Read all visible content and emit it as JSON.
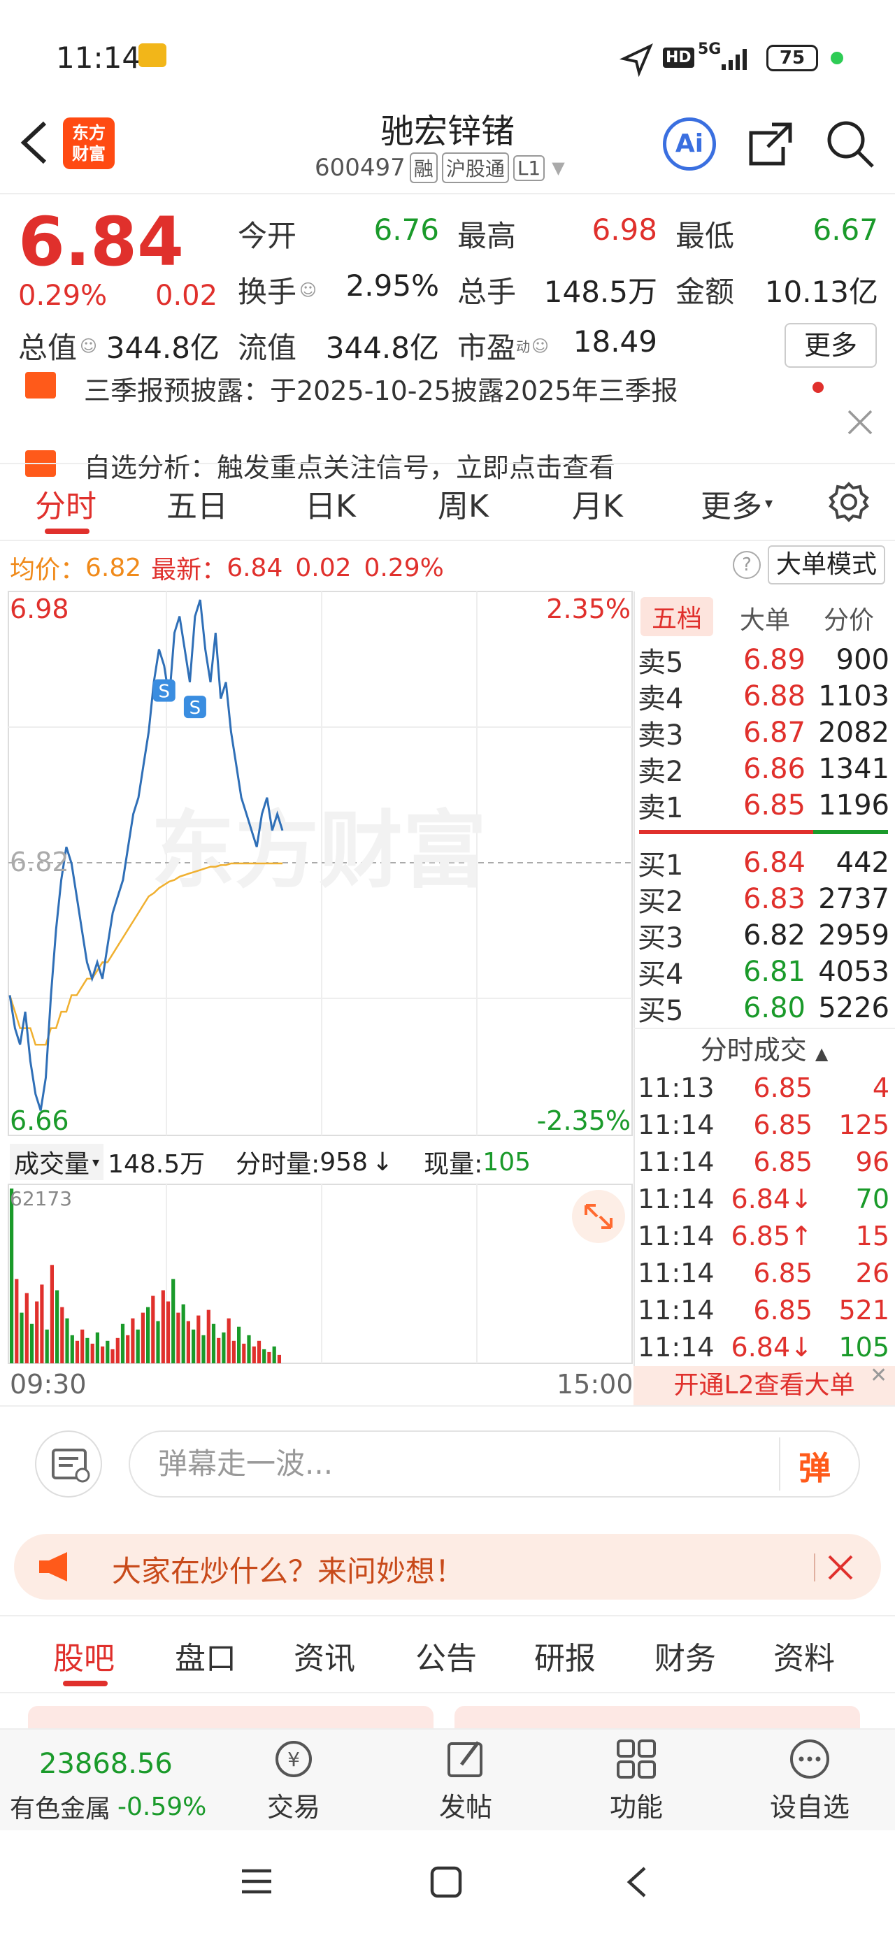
{
  "status": {
    "time": "11:14",
    "battery": "75",
    "network": "5G",
    "hd": "HD"
  },
  "header": {
    "logo_line1": "东方",
    "logo_line2": "财富",
    "title": "驰宏锌锗",
    "code": "600497",
    "tags": [
      "融",
      "沪股通",
      "L1"
    ],
    "ai_label": "Ai"
  },
  "quote": {
    "price": "6.84",
    "change_pct": "0.29%",
    "change": "0.02",
    "open_label": "今开",
    "open": "6.76",
    "high_label": "最高",
    "high": "6.98",
    "low_label": "最低",
    "low": "6.67",
    "turnover_label": "换手",
    "turnover": "2.95%",
    "volume_label": "总手",
    "volume": "148.5万",
    "amount_label": "金额",
    "amount": "10.13亿",
    "mktcap_label": "总值",
    "mktcap": "344.8亿",
    "float_label": "流值",
    "float": "344.8亿",
    "pe_label": "市盈",
    "pe_sup": "动",
    "pe": "18.49",
    "more_label": "更多"
  },
  "news": {
    "line1": "三季报预披露：于2025-10-25披露2025年三季报",
    "line2": "自选分析：触发重点关注信号，立即点击查看"
  },
  "tabs": [
    "分时",
    "五日",
    "日K",
    "周K",
    "月K",
    "更多"
  ],
  "info": {
    "avg_label": "均价：",
    "avg": "6.82",
    "latest_label": "最新：",
    "latest": "6.84",
    "chg": "0.02",
    "pct": "0.29%",
    "mode_label": "大单模式"
  },
  "chart_data": {
    "type": "line",
    "y_high": "6.98",
    "y_low": "6.66",
    "y_mid": "6.82",
    "pct_high": "2.35%",
    "pct_low": "-2.35%",
    "ylim": [
      6.66,
      6.98
    ],
    "x_start": "09:30",
    "x_end": "15:00",
    "watermark": "东方财富",
    "sell_marker": "S",
    "price_series": [
      6.74,
      6.72,
      6.71,
      6.73,
      6.7,
      6.68,
      6.67,
      6.69,
      6.74,
      6.78,
      6.81,
      6.83,
      6.82,
      6.8,
      6.78,
      6.76,
      6.75,
      6.76,
      6.75,
      6.77,
      6.79,
      6.8,
      6.81,
      6.83,
      6.85,
      6.86,
      6.88,
      6.9,
      6.93,
      6.95,
      6.94,
      6.92,
      6.96,
      6.97,
      6.95,
      6.93,
      6.97,
      6.98,
      6.95,
      6.93,
      6.96,
      6.92,
      6.93,
      6.9,
      6.88,
      6.86,
      6.85,
      6.84,
      6.83,
      6.85,
      6.86,
      6.84,
      6.85,
      6.84
    ],
    "avg_series": [
      6.74,
      6.73,
      6.72,
      6.72,
      6.72,
      6.71,
      6.71,
      6.71,
      6.72,
      6.72,
      6.73,
      6.73,
      6.74,
      6.74,
      6.745,
      6.75,
      6.75,
      6.755,
      6.76,
      6.76,
      6.765,
      6.77,
      6.775,
      6.78,
      6.785,
      6.79,
      6.795,
      6.8,
      6.802,
      6.805,
      6.807,
      6.809,
      6.81,
      6.812,
      6.813,
      6.814,
      6.815,
      6.816,
      6.817,
      6.818,
      6.818,
      6.819,
      6.819,
      6.82,
      6.82,
      6.82,
      6.82,
      6.82,
      6.82,
      6.82,
      6.82,
      6.82,
      6.82,
      6.82
    ],
    "volume_header": {
      "label": "成交量",
      "total": "148.5万",
      "period_label": "分时量:",
      "period": "958",
      "cur_label": "现量:",
      "cur": "105"
    },
    "volume_max": "62173",
    "volumes": [
      62173,
      30000,
      18000,
      25000,
      14000,
      22000,
      28000,
      12000,
      35000,
      26000,
      20000,
      16000,
      10000,
      8000,
      12000,
      9000,
      7000,
      11000,
      6000,
      8000,
      5000,
      9000,
      14000,
      10000,
      16000,
      12000,
      18000,
      20000,
      24000,
      15000,
      26000,
      22000,
      30000,
      18000,
      21000,
      15000,
      12000,
      17000,
      10000,
      19000,
      14000,
      9000,
      11000,
      16000,
      8000,
      13000,
      7000,
      10000,
      6000,
      8000,
      5000,
      4000,
      6000,
      3000
    ],
    "volume_colors": [
      "g",
      "r",
      "g",
      "r",
      "g",
      "r",
      "r",
      "g",
      "r",
      "g",
      "r",
      "g",
      "g",
      "r",
      "r",
      "g",
      "r",
      "g",
      "r",
      "g",
      "r",
      "r",
      "g",
      "r",
      "r",
      "g",
      "r",
      "g",
      "r",
      "g",
      "r",
      "r",
      "g",
      "r",
      "g",
      "r",
      "g",
      "r",
      "g",
      "r",
      "g",
      "r",
      "g",
      "r",
      "r",
      "g",
      "r",
      "g",
      "r",
      "r",
      "g",
      "r",
      "g",
      "r"
    ]
  },
  "orderbook": {
    "tabs": [
      "五档",
      "大单",
      "分价"
    ],
    "asks": [
      {
        "label": "卖5",
        "price": "6.89",
        "vol": "900",
        "c": "red"
      },
      {
        "label": "卖4",
        "price": "6.88",
        "vol": "1103",
        "c": "red"
      },
      {
        "label": "卖3",
        "price": "6.87",
        "vol": "2082",
        "c": "red"
      },
      {
        "label": "卖2",
        "price": "6.86",
        "vol": "1341",
        "c": "red"
      },
      {
        "label": "卖1",
        "price": "6.85",
        "vol": "1196",
        "c": "red"
      }
    ],
    "bids": [
      {
        "label": "买1",
        "price": "6.84",
        "vol": "442",
        "c": "red"
      },
      {
        "label": "买2",
        "price": "6.83",
        "vol": "2737",
        "c": "red"
      },
      {
        "label": "买3",
        "price": "6.82",
        "vol": "2959",
        "c": "gray"
      },
      {
        "label": "买4",
        "price": "6.81",
        "vol": "4053",
        "c": "green"
      },
      {
        "label": "买5",
        "price": "6.80",
        "vol": "5226",
        "c": "green"
      }
    ],
    "ticks_title": "分时成交",
    "ticks": [
      {
        "t": "11:13",
        "p": "6.85",
        "v": "4",
        "pc": "red",
        "vc": "red"
      },
      {
        "t": "11:14",
        "p": "6.85",
        "v": "125",
        "pc": "red",
        "vc": "red"
      },
      {
        "t": "11:14",
        "p": "6.85",
        "v": "96",
        "pc": "red",
        "vc": "red"
      },
      {
        "t": "11:14",
        "p": "6.84↓",
        "v": "70",
        "pc": "red",
        "vc": "green"
      },
      {
        "t": "11:14",
        "p": "6.85↑",
        "v": "15",
        "pc": "red",
        "vc": "red"
      },
      {
        "t": "11:14",
        "p": "6.85",
        "v": "26",
        "pc": "red",
        "vc": "red"
      },
      {
        "t": "11:14",
        "p": "6.85",
        "v": "521",
        "pc": "red",
        "vc": "red"
      },
      {
        "t": "11:14",
        "p": "6.84↓",
        "v": "105",
        "pc": "red",
        "vc": "green"
      }
    ],
    "l2_label": "开通L2查看大单"
  },
  "comment": {
    "placeholder": "弹幕走一波...",
    "dan": "弹"
  },
  "ask": {
    "text": "大家在炒什么？来问妙想！"
  },
  "bottom_tabs": [
    "股吧",
    "盘口",
    "资讯",
    "公告",
    "研报",
    "财务",
    "资料"
  ],
  "bottom_nav": {
    "index_value": "23868.56",
    "index_name": "有色金属",
    "index_pct": "-0.59%",
    "items": [
      "交易",
      "发帖",
      "功能",
      "设自选"
    ]
  }
}
